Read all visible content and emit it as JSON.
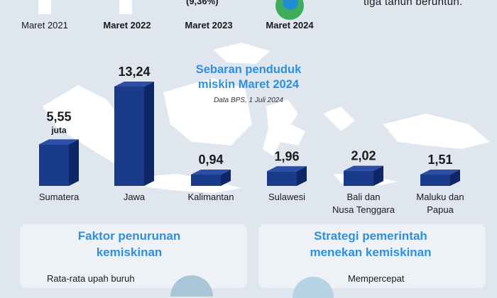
{
  "timeline": {
    "labels": [
      {
        "text": "Maret 2021",
        "bold": false
      },
      {
        "text": "Maret 2022",
        "bold": true
      },
      {
        "text": "Maret 2023",
        "bold": true
      },
      {
        "text": "Maret 2024",
        "bold": true
      }
    ],
    "pct_2023": "(9,36%)",
    "note": "tiga tahun beruntun."
  },
  "chart_data": {
    "type": "bar",
    "title": "Sebaran penduduk miskin Maret 2024",
    "subtitle": "Data BPS, 1 Juli 2024",
    "unit": "juta",
    "categories": [
      "Sumatera",
      "Jawa",
      "Kalimantan",
      "Sulawesi",
      "Bali dan Nusa Tenggara",
      "Maluku dan Papua"
    ],
    "category_lines": [
      [
        "Sumatera"
      ],
      [
        "Jawa"
      ],
      [
        "Kalimantan"
      ],
      [
        "Sulawesi"
      ],
      [
        "Bali dan",
        "Nusa Tenggara"
      ],
      [
        "Maluku dan",
        "Papua"
      ]
    ],
    "values": [
      5.55,
      13.24,
      0.94,
      1.96,
      2.02,
      1.51
    ],
    "value_labels": [
      "5,55",
      "13,24",
      "0,94",
      "1,96",
      "2,02",
      "1,51"
    ],
    "bar_color": "#1a3a8a"
  },
  "panels": {
    "left_title_line1": "Faktor penurunan",
    "left_title_line2": "kemiskinan",
    "left_text": "Rata-rata upah buruh",
    "right_title_line1": "Strategi pemerintah",
    "right_title_line2": "menekan kemiskinan",
    "right_text": "Mempercepat"
  }
}
